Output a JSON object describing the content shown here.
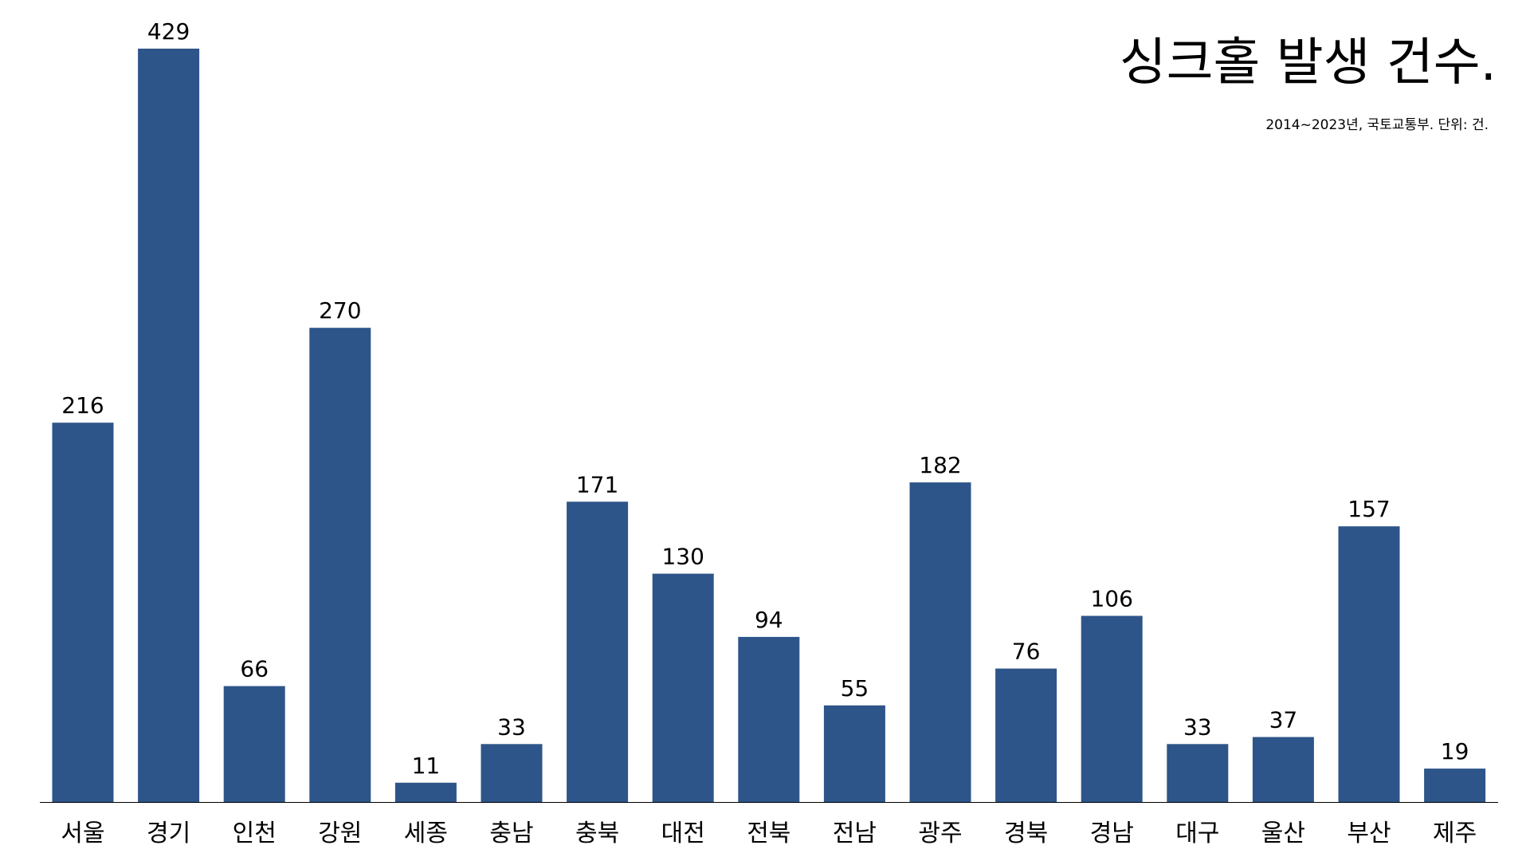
{
  "chart_data": {
    "type": "bar",
    "title": "싱크홀 발생 건수.",
    "subtitle": "2014~2023년, 국토교통부. 단위: 건.",
    "xlabel": "",
    "ylabel": "",
    "categories": [
      "서울",
      "경기",
      "인천",
      "강원",
      "세종",
      "충남",
      "충북",
      "대전",
      "전북",
      "전남",
      "광주",
      "경북",
      "경남",
      "대구",
      "울산",
      "부산",
      "제주"
    ],
    "values": [
      216,
      429,
      66,
      270,
      11,
      33,
      171,
      130,
      94,
      55,
      182,
      76,
      106,
      33,
      37,
      157,
      19
    ],
    "value_labels": [
      "216",
      "429",
      "66",
      "270",
      "11",
      "33",
      "171",
      "130",
      "94",
      "55",
      "182",
      "76",
      "106",
      "33",
      "37",
      "157",
      "19"
    ],
    "ylim": [
      0,
      429
    ],
    "grid": false,
    "legend": "none",
    "bar_color": "#2e5589"
  }
}
